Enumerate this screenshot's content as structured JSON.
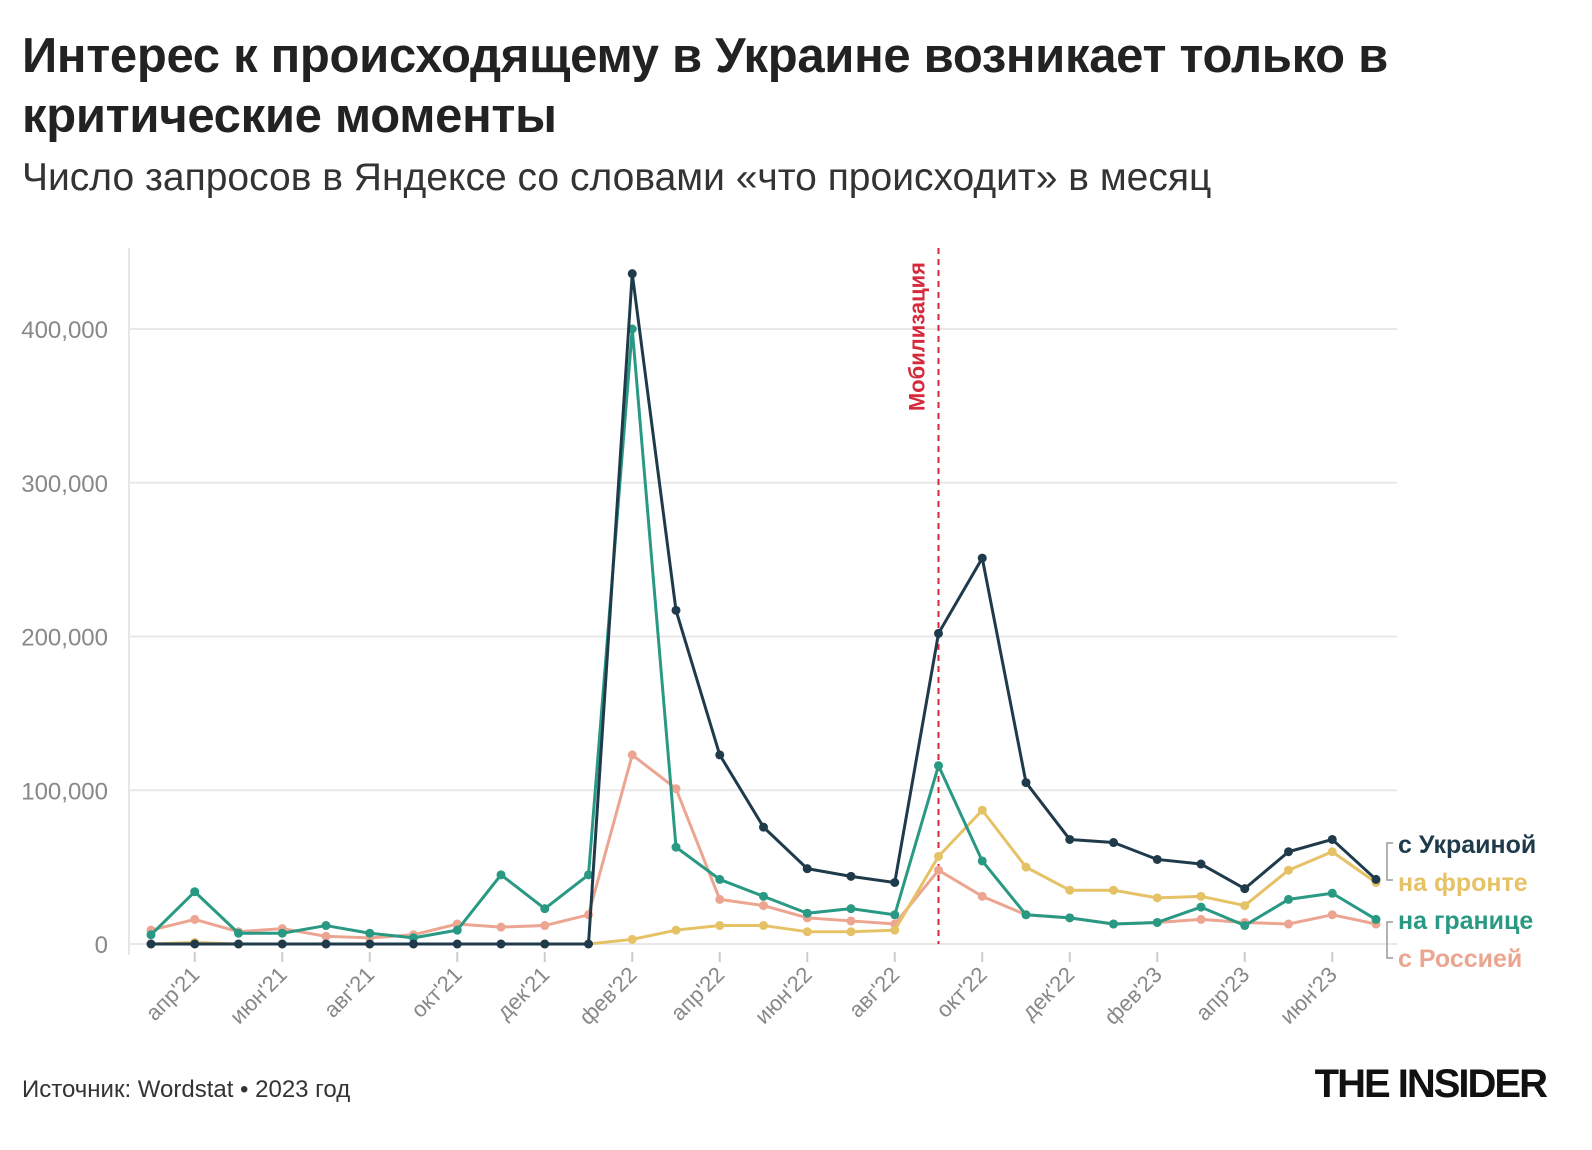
{
  "title": "Интерес к происходящему в Украине возникает только в критические моменты",
  "subtitle": "Число запросов в Яндексе со словами «что происходит» в месяц",
  "source": "Источник: Wordstat • 2023 год",
  "logo": "THE INSIDER",
  "chart_data": {
    "type": "line",
    "title": "Интерес к происходящему в Украине возникает только в критические моменты",
    "subtitle": "Число запросов в Яндексе со словами «что происходит» в месяц",
    "x": [
      "мар'21",
      "апр'21",
      "май'21",
      "июн'21",
      "июл'21",
      "авг'21",
      "сен'21",
      "окт'21",
      "ноя'21",
      "дек'21",
      "янв'22",
      "фев'22",
      "мар'22",
      "апр'22",
      "май'22",
      "июн'22",
      "июл'22",
      "авг'22",
      "сен'22",
      "окт'22",
      "ноя'22",
      "дек'22",
      "янв'23",
      "фев'23",
      "мар'23",
      "апр'23",
      "май'23",
      "июн'23",
      "июл'23"
    ],
    "x_tick_labels": [
      "апр'21",
      "июн'21",
      "авг'21",
      "окт'21",
      "дек'21",
      "фев'22",
      "апр'22",
      "июн'22",
      "авг'22",
      "окт'22",
      "дек'22",
      "фев'23",
      "апр'23",
      "июн'23"
    ],
    "y_tick_labels": [
      "0",
      "100,000",
      "200,000",
      "300,000",
      "400,000"
    ],
    "ylim": [
      0,
      450000
    ],
    "grid": "horizontal",
    "legend": "right, labels at line ends",
    "series": [
      {
        "name": "с Украиной",
        "color": "#1f3b4b",
        "values": [
          0,
          0,
          0,
          0,
          0,
          0,
          0,
          0,
          0,
          0,
          0,
          436000,
          217000,
          123000,
          76000,
          49000,
          44000,
          40000,
          202000,
          251000,
          105000,
          68000,
          66000,
          55000,
          52000,
          36000,
          60000,
          68000,
          42000
        ]
      },
      {
        "name": "на фронте",
        "color": "#e6c266",
        "values": [
          0,
          1000,
          0,
          0,
          0,
          0,
          0,
          0,
          0,
          0,
          0,
          3000,
          9000,
          12000,
          12000,
          8000,
          8000,
          9000,
          57000,
          87000,
          50000,
          35000,
          35000,
          30000,
          31000,
          25000,
          48000,
          60000,
          40000
        ]
      },
      {
        "name": "на границе",
        "color": "#2a9984",
        "values": [
          6000,
          34000,
          7000,
          7000,
          12000,
          7000,
          4000,
          9000,
          45000,
          23000,
          45000,
          400000,
          63000,
          42000,
          31000,
          20000,
          23000,
          19000,
          116000,
          54000,
          19000,
          17000,
          13000,
          14000,
          24000,
          12000,
          29000,
          33000,
          16000
        ]
      },
      {
        "name": "с Россией",
        "color": "#eca591",
        "values": [
          9000,
          16000,
          8000,
          10000,
          5000,
          4000,
          6000,
          13000,
          11000,
          12000,
          19000,
          123000,
          101000,
          29000,
          25000,
          17000,
          15000,
          13000,
          48000,
          31000,
          19000,
          17000,
          13000,
          14000,
          16000,
          14000,
          13000,
          19000,
          13000
        ]
      }
    ],
    "annotations": [
      {
        "x": "сен'22",
        "label": "Мобилизация",
        "color": "#d42a3c",
        "style": "dashed vertical line"
      }
    ]
  }
}
